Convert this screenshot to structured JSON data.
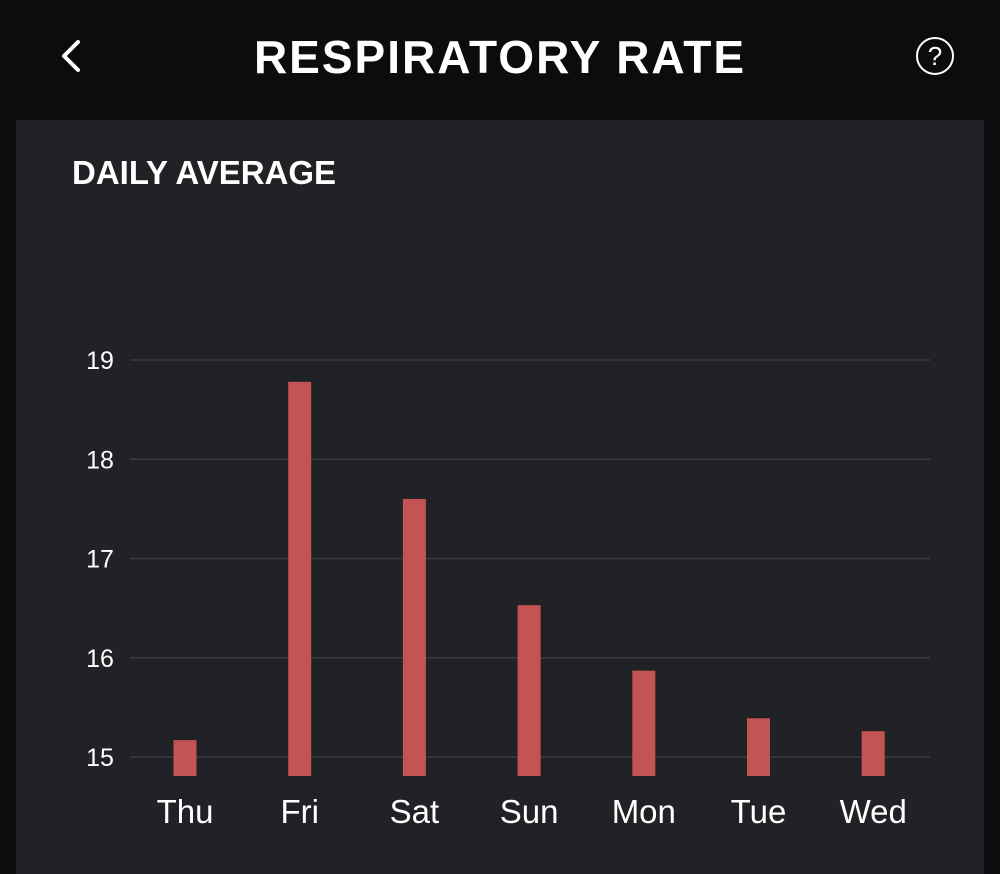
{
  "header": {
    "title": "RESPIRATORY RATE",
    "back_icon": "chevron-left-icon",
    "help_icon": "question-circle-icon",
    "help_glyph": "?"
  },
  "card": {
    "title": "DAILY AVERAGE"
  },
  "colors": {
    "bar": "#c45353",
    "grid": "#3a3b40",
    "card_bg": "#212226",
    "page_bg": "#0b0c0e"
  },
  "chart_data": {
    "type": "bar",
    "title": "DAILY AVERAGE",
    "categories": [
      "Thu",
      "Fri",
      "Sat",
      "Sun",
      "Mon",
      "Tue",
      "Wed"
    ],
    "values": [
      15.17,
      18.78,
      17.6,
      16.53,
      15.87,
      15.39,
      15.26
    ],
    "yticks": [
      15,
      16,
      17,
      18,
      19
    ],
    "ylim": [
      14.8,
      19
    ],
    "grid": true,
    "xlabel": "",
    "ylabel": ""
  }
}
